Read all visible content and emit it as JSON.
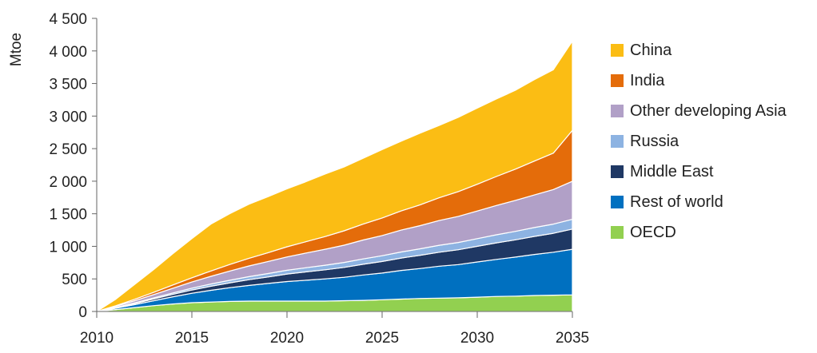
{
  "chart_data": {
    "type": "area",
    "stacked": true,
    "ylabel": "Mtoe",
    "xlabel": "",
    "xlim": [
      2010,
      2035
    ],
    "ylim": [
      0,
      4500
    ],
    "xticks": [
      2010,
      2015,
      2020,
      2025,
      2030,
      2035
    ],
    "yticks": [
      0,
      500,
      1000,
      1500,
      2000,
      2500,
      3000,
      3500,
      4000,
      4500
    ],
    "ytick_labels": [
      "0",
      "500",
      "1 000",
      "1 500",
      "2 000",
      "2 500",
      "3 000",
      "3 500",
      "4 000",
      "4 500"
    ],
    "x": [
      2010,
      2011,
      2012,
      2013,
      2014,
      2015,
      2016,
      2017,
      2018,
      2019,
      2020,
      2021,
      2022,
      2023,
      2024,
      2025,
      2026,
      2027,
      2028,
      2029,
      2030,
      2031,
      2032,
      2033,
      2034,
      2035
    ],
    "series": [
      {
        "name": "OECD",
        "color": "#92d050",
        "values": [
          0,
          30,
          60,
          90,
          115,
          135,
          145,
          155,
          160,
          160,
          160,
          160,
          160,
          165,
          170,
          180,
          190,
          200,
          205,
          210,
          220,
          230,
          235,
          245,
          250,
          255
        ]
      },
      {
        "name": "Rest of world",
        "color": "#0070c0",
        "values": [
          0,
          20,
          45,
          75,
          110,
          145,
          180,
          210,
          240,
          270,
          300,
          320,
          340,
          360,
          390,
          410,
          440,
          460,
          490,
          510,
          540,
          570,
          600,
          630,
          660,
          700
        ]
      },
      {
        "name": "Middle East",
        "color": "#1f3864",
        "values": [
          0,
          8,
          18,
          28,
          38,
          50,
          62,
          75,
          88,
          100,
          115,
          128,
          140,
          152,
          165,
          178,
          190,
          203,
          215,
          228,
          240,
          253,
          265,
          278,
          290,
          310
        ]
      },
      {
        "name": "Russia",
        "color": "#8db3e2",
        "values": [
          0,
          5,
          10,
          15,
          22,
          28,
          35,
          40,
          46,
          52,
          58,
          64,
          70,
          76,
          82,
          88,
          94,
          100,
          106,
          112,
          118,
          124,
          130,
          136,
          142,
          150
        ]
      },
      {
        "name": "Other developing Asia",
        "color": "#b1a0c7",
        "values": [
          0,
          15,
          32,
          52,
          72,
          95,
          118,
          142,
          165,
          185,
          205,
          225,
          245,
          265,
          290,
          310,
          335,
          355,
          380,
          400,
          425,
          450,
          475,
          500,
          530,
          585
        ]
      },
      {
        "name": "India",
        "color": "#e46c0a",
        "values": [
          0,
          10,
          22,
          35,
          50,
          65,
          82,
          100,
          118,
          135,
          155,
          175,
          195,
          220,
          245,
          270,
          295,
          320,
          350,
          380,
          410,
          445,
          480,
          520,
          560,
          780
        ]
      },
      {
        "name": "China",
        "color": "#fbbd14",
        "values": [
          0,
          100,
          230,
          350,
          480,
          600,
          720,
          780,
          830,
          860,
          890,
          920,
          960,
          980,
          1010,
          1050,
          1070,
          1100,
          1110,
          1140,
          1170,
          1190,
          1210,
          1250,
          1280,
          1370
        ]
      }
    ],
    "legend_order": [
      "China",
      "India",
      "Other developing Asia",
      "Russia",
      "Middle East",
      "Rest of world",
      "OECD"
    ],
    "legend_position": "right",
    "grid": false
  }
}
